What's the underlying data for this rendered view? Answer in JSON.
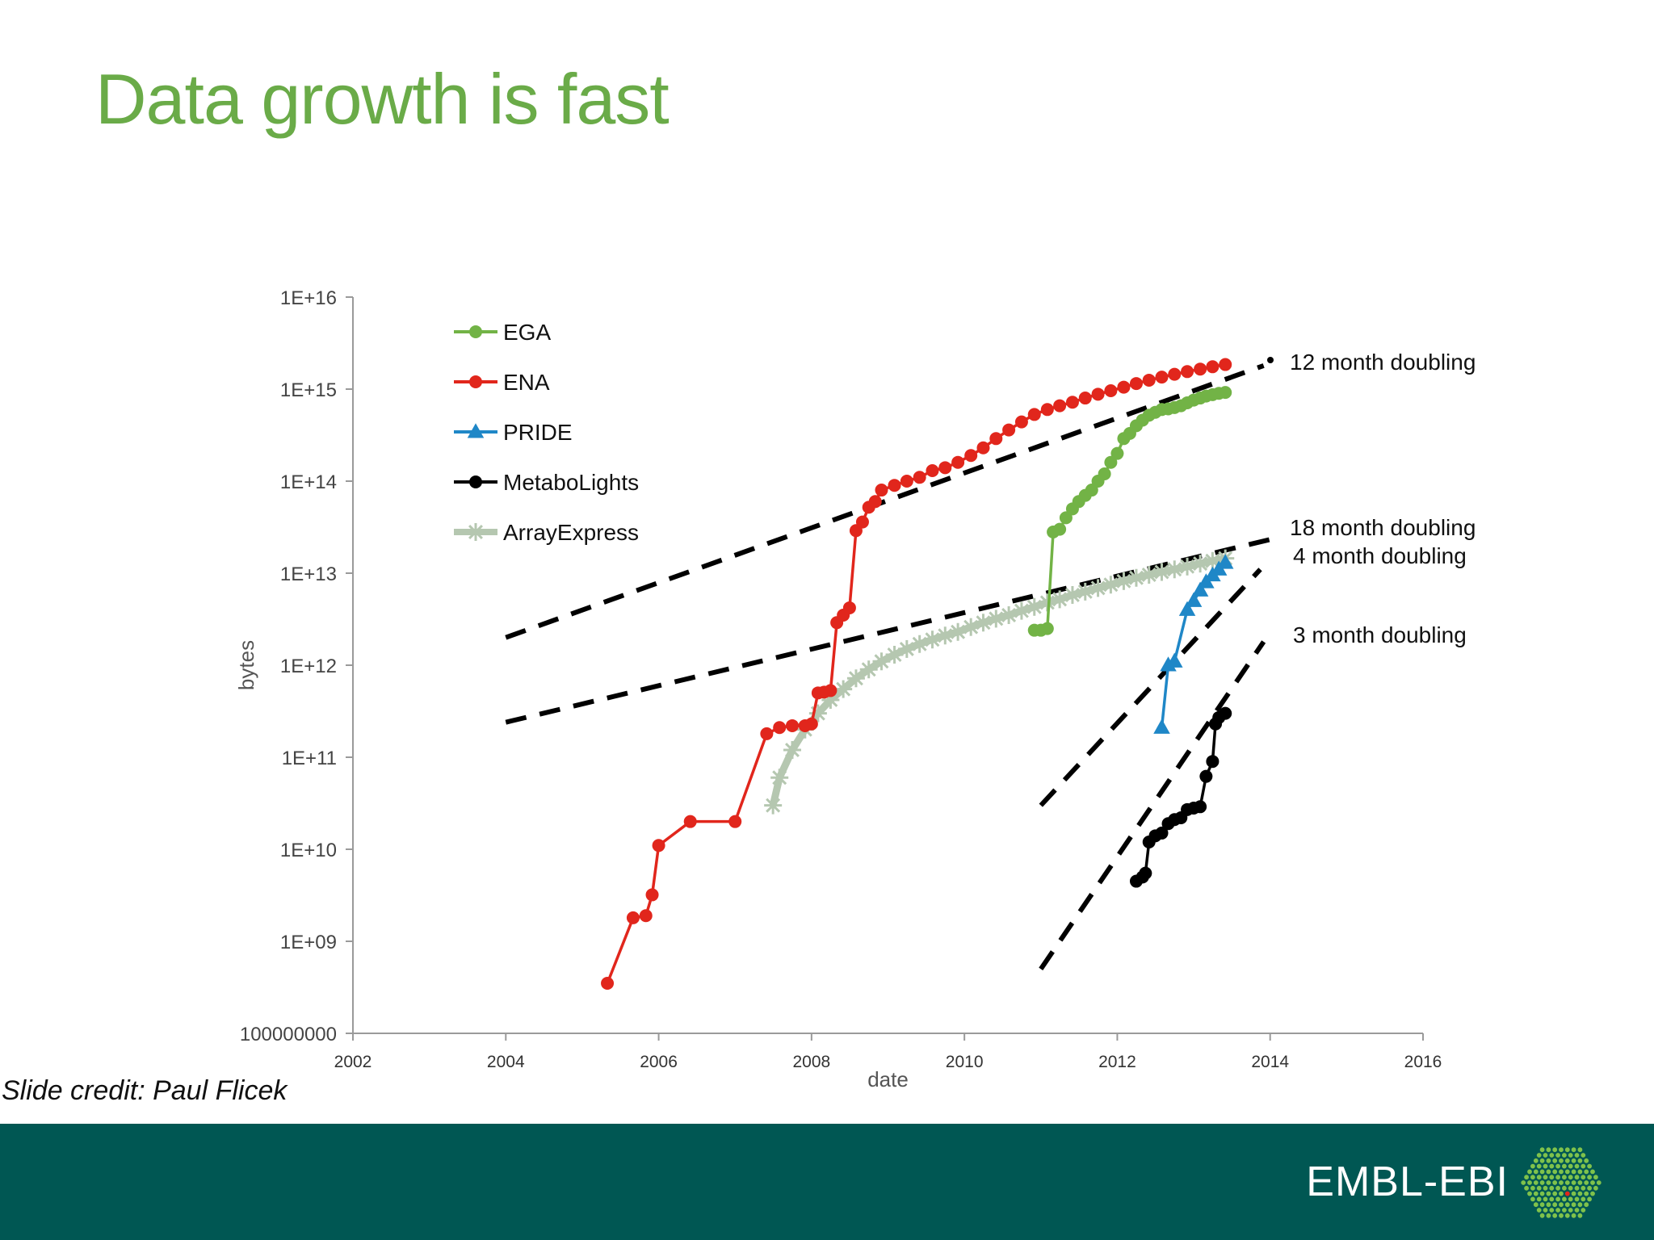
{
  "slide": {
    "title": "Data growth is fast",
    "credit": "Slide credit: Paul Flicek",
    "footer_brand": "EMBL-EBI",
    "colors": {
      "title": "#6aab48",
      "footer_bg": "#005753",
      "footer_text": "#ffffff"
    }
  },
  "chart_data": {
    "type": "line",
    "xlabel": "date",
    "ylabel": "bytes",
    "x_scale": "time",
    "y_scale": "log",
    "xlim": [
      "2002-01-01",
      "2016-01-01"
    ],
    "ylim": [
      100000000,
      1e+16
    ],
    "x_ticks": [
      "2002",
      "2004",
      "2006",
      "2008",
      "2010",
      "2012",
      "2014",
      "2016"
    ],
    "y_ticks": [
      "100000000",
      "1E+09",
      "1E+10",
      "1E+11",
      "1E+12",
      "1E+13",
      "1E+14",
      "1E+15",
      "1E+16"
    ],
    "grid": false,
    "legend_position": "top-left",
    "series": [
      {
        "name": "EGA",
        "color": "#72b346",
        "marker": "circle",
        "points": [
          [
            "2010-12-01",
            2400000000000.0
          ],
          [
            "2011-01-01",
            2400000000000.0
          ],
          [
            "2011-02-01",
            2500000000000.0
          ],
          [
            "2011-03-01",
            28000000000000.0
          ],
          [
            "2011-04-01",
            30000000000000.0
          ],
          [
            "2011-05-01",
            40000000000000.0
          ],
          [
            "2011-06-01",
            50000000000000.0
          ],
          [
            "2011-07-01",
            60000000000000.0
          ],
          [
            "2011-08-01",
            70000000000000.0
          ],
          [
            "2011-09-01",
            80000000000000.0
          ],
          [
            "2011-10-01",
            100000000000000.0
          ],
          [
            "2011-11-01",
            120000000000000.0
          ],
          [
            "2011-12-01",
            160000000000000.0
          ],
          [
            "2012-01-01",
            200000000000000.0
          ],
          [
            "2012-02-01",
            290000000000000.0
          ],
          [
            "2012-03-01",
            330000000000000.0
          ],
          [
            "2012-04-01",
            400000000000000.0
          ],
          [
            "2012-05-01",
            460000000000000.0
          ],
          [
            "2012-06-01",
            520000000000000.0
          ],
          [
            "2012-07-01",
            560000000000000.0
          ],
          [
            "2012-08-01",
            600000000000000.0
          ],
          [
            "2012-09-01",
            610000000000000.0
          ],
          [
            "2012-10-01",
            630000000000000.0
          ],
          [
            "2012-11-01",
            660000000000000.0
          ],
          [
            "2012-12-01",
            710000000000000.0
          ],
          [
            "2013-01-01",
            760000000000000.0
          ],
          [
            "2013-02-01",
            800000000000000.0
          ],
          [
            "2013-03-01",
            840000000000000.0
          ],
          [
            "2013-04-01",
            870000000000000.0
          ],
          [
            "2013-05-01",
            900000000000000.0
          ],
          [
            "2013-06-01",
            920000000000000.0
          ]
        ]
      },
      {
        "name": "ENA",
        "color": "#e1261c",
        "marker": "circle",
        "points": [
          [
            "2005-05-01",
            350000000.0
          ],
          [
            "2005-09-01",
            1800000000.0
          ],
          [
            "2005-11-01",
            1900000000.0
          ],
          [
            "2005-12-01",
            3200000000.0
          ],
          [
            "2006-01-01",
            11000000000.0
          ],
          [
            "2006-06-01",
            20000000000.0
          ],
          [
            "2007-01-01",
            20000000000.0
          ],
          [
            "2007-06-01",
            180000000000.0
          ],
          [
            "2007-08-01",
            210000000000.0
          ],
          [
            "2007-10-01",
            220000000000.0
          ],
          [
            "2007-12-01",
            220000000000.0
          ],
          [
            "2008-01-01",
            230000000000.0
          ],
          [
            "2008-02-01",
            500000000000.0
          ],
          [
            "2008-03-01",
            510000000000.0
          ],
          [
            "2008-04-01",
            530000000000.0
          ],
          [
            "2008-05-01",
            2900000000000.0
          ],
          [
            "2008-06-01",
            3500000000000.0
          ],
          [
            "2008-07-01",
            4200000000000.0
          ],
          [
            "2008-08-01",
            29000000000000.0
          ],
          [
            "2008-09-01",
            36000000000000.0
          ],
          [
            "2008-10-01",
            52000000000000.0
          ],
          [
            "2008-11-01",
            60000000000000.0
          ],
          [
            "2008-12-01",
            80000000000000.0
          ],
          [
            "2009-02-01",
            90000000000000.0
          ],
          [
            "2009-04-01",
            100000000000000.0
          ],
          [
            "2009-06-01",
            110000000000000.0
          ],
          [
            "2009-08-01",
            130000000000000.0
          ],
          [
            "2009-10-01",
            140000000000000.0
          ],
          [
            "2009-12-01",
            160000000000000.0
          ],
          [
            "2010-02-01",
            190000000000000.0
          ],
          [
            "2010-04-01",
            230000000000000.0
          ],
          [
            "2010-06-01",
            290000000000000.0
          ],
          [
            "2010-08-01",
            360000000000000.0
          ],
          [
            "2010-10-01",
            440000000000000.0
          ],
          [
            "2010-12-01",
            530000000000000.0
          ],
          [
            "2011-02-01",
            600000000000000.0
          ],
          [
            "2011-04-01",
            660000000000000.0
          ],
          [
            "2011-06-01",
            720000000000000.0
          ],
          [
            "2011-08-01",
            800000000000000.0
          ],
          [
            "2011-10-01",
            880000000000000.0
          ],
          [
            "2011-12-01",
            960000000000000.0
          ],
          [
            "2012-02-01",
            1050000000000000.0
          ],
          [
            "2012-04-01",
            1150000000000000.0
          ],
          [
            "2012-06-01",
            1250000000000000.0
          ],
          [
            "2012-08-01",
            1350000000000000.0
          ],
          [
            "2012-10-01",
            1450000000000000.0
          ],
          [
            "2012-12-01",
            1550000000000000.0
          ],
          [
            "2013-02-01",
            1650000000000000.0
          ],
          [
            "2013-04-01",
            1750000000000000.0
          ],
          [
            "2013-06-01",
            1850000000000000.0
          ]
        ]
      },
      {
        "name": "PRIDE",
        "color": "#1f87c7",
        "marker": "triangle",
        "points": [
          [
            "2012-08-01",
            210000000000.0
          ],
          [
            "2012-09-01",
            1000000000000.0
          ],
          [
            "2012-10-01",
            1100000000000.0
          ],
          [
            "2012-12-01",
            4000000000000.0
          ],
          [
            "2013-01-01",
            5000000000000.0
          ],
          [
            "2013-02-01",
            6500000000000.0
          ],
          [
            "2013-03-01",
            8000000000000.0
          ],
          [
            "2013-04-01",
            9500000000000.0
          ],
          [
            "2013-05-01",
            11000000000000.0
          ],
          [
            "2013-06-01",
            13000000000000.0
          ]
        ]
      },
      {
        "name": "MetaboLights",
        "color": "#000000",
        "marker": "circle",
        "points": [
          [
            "2012-04-01",
            4500000000.0
          ],
          [
            "2012-05-01",
            5000000000.0
          ],
          [
            "2012-05-15",
            5500000000.0
          ],
          [
            "2012-06-01",
            12000000000.0
          ],
          [
            "2012-07-01",
            14000000000.0
          ],
          [
            "2012-08-01",
            15000000000.0
          ],
          [
            "2012-09-01",
            19000000000.0
          ],
          [
            "2012-10-01",
            21000000000.0
          ],
          [
            "2012-11-01",
            22000000000.0
          ],
          [
            "2012-12-01",
            27000000000.0
          ],
          [
            "2013-01-01",
            28000000000.0
          ],
          [
            "2013-02-01",
            29000000000.0
          ],
          [
            "2013-03-01",
            62000000000.0
          ],
          [
            "2013-04-01",
            90000000000.0
          ],
          [
            "2013-04-15",
            230000000000.0
          ],
          [
            "2013-05-01",
            270000000000.0
          ],
          [
            "2013-06-01",
            300000000000.0
          ]
        ]
      },
      {
        "name": "ArrayExpress",
        "color": "#b5c7b0",
        "marker": "star",
        "points": [
          [
            "2007-07-01",
            30000000000.0
          ],
          [
            "2007-08-01",
            60000000000.0
          ],
          [
            "2007-10-01",
            120000000000.0
          ],
          [
            "2007-12-01",
            200000000000.0
          ],
          [
            "2008-02-01",
            300000000000.0
          ],
          [
            "2008-04-01",
            420000000000.0
          ],
          [
            "2008-06-01",
            550000000000.0
          ],
          [
            "2008-08-01",
            720000000000.0
          ],
          [
            "2008-10-01",
            900000000000.0
          ],
          [
            "2008-12-01",
            1100000000000.0
          ],
          [
            "2009-02-01",
            1300000000000.0
          ],
          [
            "2009-04-01",
            1500000000000.0
          ],
          [
            "2009-06-01",
            1700000000000.0
          ],
          [
            "2009-08-01",
            1900000000000.0
          ],
          [
            "2009-10-01",
            2100000000000.0
          ],
          [
            "2009-12-01",
            2300000000000.0
          ],
          [
            "2010-02-01",
            2600000000000.0
          ],
          [
            "2010-04-01",
            2900000000000.0
          ],
          [
            "2010-06-01",
            3200000000000.0
          ],
          [
            "2010-08-01",
            3500000000000.0
          ],
          [
            "2010-10-01",
            3900000000000.0
          ],
          [
            "2010-12-01",
            4300000000000.0
          ],
          [
            "2011-02-01",
            4800000000000.0
          ],
          [
            "2011-04-01",
            5200000000000.0
          ],
          [
            "2011-06-01",
            5800000000000.0
          ],
          [
            "2011-08-01",
            6300000000000.0
          ],
          [
            "2011-10-01",
            6900000000000.0
          ],
          [
            "2011-12-01",
            7500000000000.0
          ],
          [
            "2012-02-01",
            8200000000000.0
          ],
          [
            "2012-04-01",
            8900000000000.0
          ],
          [
            "2012-06-01",
            9600000000000.0
          ],
          [
            "2012-08-01",
            10300000000000.0
          ],
          [
            "2012-10-01",
            11000000000000.0
          ],
          [
            "2012-12-01",
            11800000000000.0
          ],
          [
            "2013-02-01",
            12700000000000.0
          ],
          [
            "2013-04-01",
            13600000000000.0
          ],
          [
            "2013-06-01",
            14500000000000.0
          ]
        ]
      }
    ],
    "reference_lines": [
      {
        "label": "12 month doubling",
        "from": [
          "2004-01-01",
          2000000000000.0
        ],
        "to": [
          "2013-12-01",
          1800000000000000.0
        ]
      },
      {
        "label": "18 month doubling",
        "from": [
          "2004-01-01",
          240000000000.0
        ],
        "to": [
          "2014-03-01",
          25000000000000.0
        ]
      },
      {
        "label": "4 month doubling",
        "from": [
          "2011-01-01",
          30000000000.0
        ],
        "to": [
          "2013-11-15",
          11000000000000.0
        ]
      },
      {
        "label": "3 month doubling",
        "from": [
          "2011-01-01",
          500000000.0
        ],
        "to": [
          "2013-12-01",
          1800000000000.0
        ]
      }
    ]
  }
}
